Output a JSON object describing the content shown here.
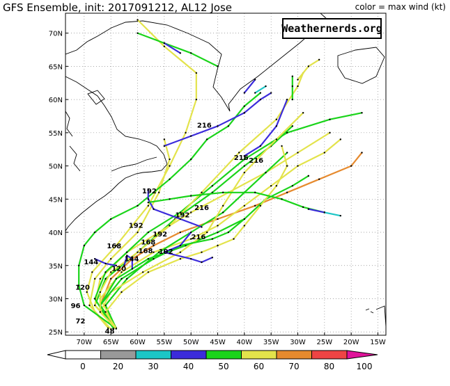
{
  "header": {
    "title": "GFS Ensemble, init: 2017091212, AL12 Jose",
    "legend_note": "color = max wind (kt)"
  },
  "watermark": "Weathernerds.org",
  "axes": {
    "lat_labels": [
      "70N",
      "65N",
      "60N",
      "55N",
      "50N",
      "45N",
      "40N",
      "35N",
      "30N",
      "25N"
    ],
    "lat_values": [
      70,
      65,
      60,
      55,
      50,
      45,
      40,
      35,
      30,
      25
    ],
    "lon_labels": [
      "70W",
      "65W",
      "60W",
      "55W",
      "50W",
      "45W",
      "40W",
      "35W",
      "30W",
      "25W",
      "20W",
      "15W"
    ],
    "lon_values": [
      -70,
      -65,
      -60,
      -55,
      -50,
      -45,
      -40,
      -35,
      -30,
      -25,
      -20,
      -15
    ],
    "lat_range": [
      24.5,
      73
    ],
    "lon_range": [
      -73.5,
      -13.5
    ],
    "grid": "dotted"
  },
  "colorbar": {
    "ticks": [
      "0",
      "20",
      "30",
      "40",
      "50",
      "60",
      "70",
      "80",
      "100"
    ],
    "colors": [
      "#ffffff",
      "#999999",
      "#1cc6c6",
      "#3b2bdb",
      "#1ad41a",
      "#e3e34b",
      "#e68a2e",
      "#ee4444",
      "#e0139a",
      "#000000"
    ]
  },
  "chart_data": {
    "type": "map",
    "hour_labels": [
      {
        "text": "216",
        "lat": 56.2,
        "lon": -47.5
      },
      {
        "text": "216",
        "lat": 51.3,
        "lon": -40.6
      },
      {
        "text": "216",
        "lat": 50.9,
        "lon": -37.8
      },
      {
        "text": "192",
        "lat": 46.3,
        "lon": -57.8
      },
      {
        "text": "216",
        "lat": 43.8,
        "lon": -48.0
      },
      {
        "text": "192",
        "lat": 42.7,
        "lon": -51.6
      },
      {
        "text": "192",
        "lat": 41.1,
        "lon": -60.3
      },
      {
        "text": "192",
        "lat": 39.8,
        "lon": -55.8
      },
      {
        "text": "216",
        "lat": 39.4,
        "lon": -48.6
      },
      {
        "text": "168",
        "lat": 38.6,
        "lon": -58.0
      },
      {
        "text": "168",
        "lat": 38.0,
        "lon": -64.4
      },
      {
        "text": "192",
        "lat": 37.2,
        "lon": -54.7
      },
      {
        "text": "168",
        "lat": 37.3,
        "lon": -58.5
      },
      {
        "text": "144",
        "lat": 35.6,
        "lon": -68.7
      },
      {
        "text": "144",
        "lat": 36.1,
        "lon": -61.1
      },
      {
        "text": "120",
        "lat": 34.6,
        "lon": -63.5
      },
      {
        "text": "120",
        "lat": 31.8,
        "lon": -70.3
      },
      {
        "text": "96",
        "lat": 29.0,
        "lon": -71.6
      },
      {
        "text": "72",
        "lat": 26.7,
        "lon": -70.7
      },
      {
        "text": "48",
        "lat": 25.2,
        "lon": -65.2
      }
    ],
    "tracks": [
      {
        "color": "#e3e34b",
        "points": [
          [
            25.6,
            -65.5
          ],
          [
            28,
            -68
          ],
          [
            31,
            -69.5
          ],
          [
            34,
            -68.5
          ],
          [
            38,
            -64
          ],
          [
            44,
            -58
          ],
          [
            50,
            -54
          ],
          [
            55,
            -51
          ],
          [
            60,
            -49
          ],
          [
            64,
            -49
          ],
          [
            68,
            -55
          ],
          [
            72,
            -60
          ]
        ]
      },
      {
        "color": "#e3e34b",
        "points": [
          [
            25.4,
            -65
          ],
          [
            29,
            -69
          ],
          [
            33,
            -68
          ],
          [
            36,
            -65
          ],
          [
            40,
            -60
          ],
          [
            46,
            -56
          ],
          [
            51,
            -54
          ],
          [
            54,
            -55
          ]
        ]
      },
      {
        "color": "#1ad41a",
        "points": [
          [
            25.5,
            -64
          ],
          [
            29,
            -70
          ],
          [
            32,
            -71
          ],
          [
            35,
            -71
          ],
          [
            38,
            -70
          ],
          [
            40,
            -68
          ],
          [
            42,
            -65
          ],
          [
            44,
            -60
          ],
          [
            48,
            -54
          ],
          [
            51,
            -50
          ],
          [
            54,
            -47
          ],
          [
            56,
            -43
          ],
          [
            59,
            -40
          ],
          [
            61,
            -37
          ]
        ]
      },
      {
        "color": "#1ad41a",
        "points": [
          [
            25.5,
            -64
          ],
          [
            29,
            -68
          ],
          [
            33,
            -66
          ],
          [
            37,
            -60
          ],
          [
            42,
            -53
          ],
          [
            46,
            -46
          ],
          [
            50,
            -40
          ],
          [
            53,
            -35
          ],
          [
            56,
            -31
          ]
        ]
      },
      {
        "color": "#e3e34b",
        "points": [
          [
            25.5,
            -64
          ],
          [
            29,
            -68
          ],
          [
            33,
            -67
          ],
          [
            37,
            -62
          ],
          [
            40,
            -56
          ],
          [
            43,
            -50
          ],
          [
            46,
            -43
          ],
          [
            49,
            -36
          ],
          [
            52,
            -30
          ],
          [
            55,
            -24
          ]
        ]
      },
      {
        "color": "#1ad41a",
        "points": [
          [
            25.5,
            -64.5
          ],
          [
            30,
            -68
          ],
          [
            34,
            -66
          ],
          [
            37,
            -62
          ],
          [
            40,
            -58
          ],
          [
            43,
            -52
          ],
          [
            47,
            -46
          ],
          [
            51,
            -40
          ],
          [
            55,
            -32
          ],
          [
            57,
            -24
          ],
          [
            58,
            -18
          ]
        ]
      },
      {
        "color": "#e68a2e",
        "points": [
          [
            25.5,
            -64
          ],
          [
            29,
            -67
          ],
          [
            33,
            -65
          ],
          [
            36,
            -61
          ],
          [
            38,
            -57
          ],
          [
            40,
            -52
          ],
          [
            42,
            -45
          ],
          [
            44,
            -38
          ],
          [
            46,
            -32
          ],
          [
            48,
            -26
          ],
          [
            50,
            -20
          ],
          [
            52,
            -18
          ]
        ]
      },
      {
        "color": "#e3e34b",
        "points": [
          [
            25.6,
            -64
          ],
          [
            30,
            -67
          ],
          [
            34,
            -63
          ],
          [
            37,
            -57
          ],
          [
            39,
            -50
          ],
          [
            41,
            -45
          ],
          [
            44,
            -40
          ],
          [
            47,
            -35
          ],
          [
            50,
            -30
          ],
          [
            52,
            -25
          ],
          [
            54,
            -22
          ]
        ]
      },
      {
        "color": "#1ad41a",
        "points": [
          [
            25.5,
            -64
          ],
          [
            29,
            -66
          ],
          [
            33,
            -62
          ],
          [
            37,
            -56
          ],
          [
            40,
            -50
          ],
          [
            43,
            -44
          ],
          [
            46,
            -40
          ],
          [
            49,
            -36
          ],
          [
            52,
            -32
          ]
        ]
      },
      {
        "color": "#1ad41a",
        "points": [
          [
            25.5,
            -64
          ],
          [
            29,
            -67
          ],
          [
            33,
            -64
          ],
          [
            36,
            -58
          ],
          [
            38,
            -51
          ],
          [
            40,
            -45
          ],
          [
            42,
            -40
          ],
          [
            45,
            -36
          ],
          [
            47,
            -31
          ],
          [
            48.5,
            -28
          ]
        ]
      },
      {
        "color": "#e3e34b",
        "points": [
          [
            25.5,
            -64
          ],
          [
            28,
            -67
          ],
          [
            31,
            -65
          ],
          [
            34,
            -59
          ],
          [
            37,
            -52
          ],
          [
            40,
            -47
          ],
          [
            44,
            -44
          ],
          [
            49,
            -40
          ],
          [
            54,
            -34
          ],
          [
            58,
            -29
          ]
        ]
      },
      {
        "color": "#1ad41a",
        "points": [
          [
            25.5,
            -64
          ],
          [
            29,
            -67
          ],
          [
            33,
            -63
          ],
          [
            36,
            -57
          ],
          [
            38,
            -52
          ],
          [
            39,
            -46
          ],
          [
            40,
            -43
          ],
          [
            42,
            -40
          ]
        ]
      },
      {
        "color": "#e3e34b",
        "points": [
          [
            25.5,
            -64
          ],
          [
            28,
            -66
          ],
          [
            31,
            -63
          ],
          [
            34,
            -58
          ],
          [
            36,
            -52
          ],
          [
            37,
            -48
          ],
          [
            38,
            -45
          ],
          [
            39,
            -42
          ],
          [
            41,
            -40
          ],
          [
            44,
            -37
          ],
          [
            47,
            -34
          ],
          [
            50,
            -32
          ],
          [
            53,
            -33
          ]
        ]
      },
      {
        "color": "#e3e34b",
        "points": [
          [
            25.5,
            -64
          ],
          [
            28,
            -67
          ],
          [
            31,
            -67
          ],
          [
            34,
            -65
          ],
          [
            37,
            -60
          ],
          [
            41,
            -54
          ],
          [
            46,
            -48
          ],
          [
            52,
            -41
          ],
          [
            57,
            -34
          ],
          [
            62,
            -30
          ],
          [
            64,
            -29
          ]
        ]
      },
      {
        "color": "#3b2bdb",
        "points": [
          [
            40.8,
            -48
          ],
          [
            42,
            -52
          ],
          [
            43.5,
            -57
          ],
          [
            45,
            -58
          ],
          [
            46.5,
            -58
          ]
        ]
      },
      {
        "color": "#3b2bdb",
        "points": [
          [
            40,
            -50
          ],
          [
            38,
            -52
          ],
          [
            37,
            -55
          ],
          [
            36,
            -50
          ],
          [
            35.5,
            -48
          ],
          [
            36.2,
            -46
          ]
        ]
      },
      {
        "color": "#3b2bdb",
        "points": [
          [
            53,
            -55
          ],
          [
            54.5,
            -50
          ],
          [
            56,
            -45
          ],
          [
            58,
            -40
          ]
        ]
      },
      {
        "color": "#3b2bdb",
        "points": [
          [
            58,
            -40
          ],
          [
            60,
            -37
          ],
          [
            61,
            -35
          ]
        ]
      },
      {
        "color": "#3b2bdb",
        "points": [
          [
            51.5,
            -40
          ],
          [
            53,
            -37
          ],
          [
            56,
            -34
          ],
          [
            60,
            -32
          ]
        ]
      },
      {
        "color": "#3b2bdb",
        "points": [
          [
            35,
            -62.5
          ],
          [
            36.5,
            -62
          ],
          [
            36,
            -61
          ],
          [
            34.5,
            -61
          ]
        ]
      },
      {
        "color": "#3b2bdb",
        "points": [
          [
            35,
            -64
          ],
          [
            35.3,
            -66
          ],
          [
            36,
            -68
          ]
        ]
      },
      {
        "color": "#1ad41a",
        "points": [
          [
            44.5,
            -58
          ],
          [
            45,
            -54
          ],
          [
            45.5,
            -50
          ],
          [
            46,
            -44
          ],
          [
            46,
            -38
          ],
          [
            45,
            -33
          ],
          [
            43.8,
            -29
          ],
          [
            43,
            -25
          ]
        ]
      },
      {
        "color": "#3b2bdb",
        "points": [
          [
            43.5,
            -28
          ],
          [
            43,
            -25
          ]
        ]
      },
      {
        "color": "#1cc6c6",
        "points": [
          [
            43,
            -25
          ],
          [
            42.5,
            -22
          ]
        ]
      },
      {
        "color": "#3b2bdb",
        "points": [
          [
            61,
            -40
          ],
          [
            63,
            -38
          ]
        ]
      },
      {
        "color": "#1cc6c6",
        "points": [
          [
            61,
            -38
          ],
          [
            62,
            -36
          ]
        ]
      },
      {
        "color": "#1ad41a",
        "points": [
          [
            70,
            -60
          ],
          [
            68.5,
            -55
          ],
          [
            67,
            -50
          ],
          [
            65,
            -45
          ]
        ]
      },
      {
        "color": "#3b2bdb",
        "points": [
          [
            68.5,
            -55
          ],
          [
            67,
            -52
          ]
        ]
      },
      {
        "color": "#e3e34b",
        "points": [
          [
            63,
            -30
          ],
          [
            65,
            -28
          ],
          [
            66,
            -26
          ]
        ]
      },
      {
        "color": "#1ad41a",
        "points": [
          [
            60,
            -31
          ],
          [
            62,
            -31
          ],
          [
            63.5,
            -31
          ]
        ]
      }
    ]
  }
}
